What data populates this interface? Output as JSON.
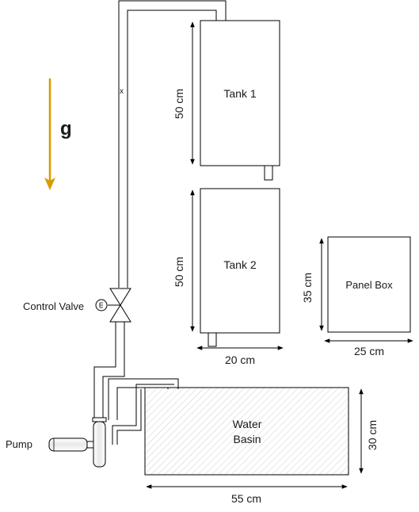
{
  "gravity": {
    "label": "g",
    "color": "#d79b00"
  },
  "tank1": {
    "label": "Tank 1",
    "height_dim": "50 cm"
  },
  "tank2": {
    "label": "Tank 2",
    "height_dim": "50 cm",
    "width_dim": "20 cm"
  },
  "panel_box": {
    "label": "Panel Box",
    "height_dim": "35 cm",
    "width_dim": "25 cm"
  },
  "water_basin": {
    "label_line1": "Water",
    "label_line2": "Basin",
    "height_dim": "30 cm",
    "width_dim": "55 cm"
  },
  "control_valve": {
    "label": "Control Valve"
  },
  "pump": {
    "label": "Pump"
  },
  "pipe_marker": {
    "label": "x"
  }
}
